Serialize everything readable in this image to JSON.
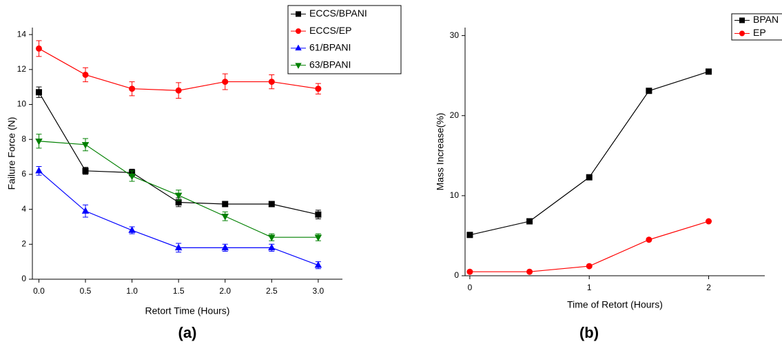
{
  "chart_data": [
    {
      "type": "line",
      "panel_label": "(a)",
      "x_label": "Retort Time (Hours)",
      "y_label": "Failure Force (N)",
      "x": [
        0,
        0.5,
        1,
        1.5,
        2,
        2.5,
        3
      ],
      "xlim": [
        -0.07,
        3.26
      ],
      "ylim": [
        0,
        14.4
      ],
      "xticks": [
        {
          "value": 0,
          "label": "0.0"
        },
        {
          "value": 0.5,
          "label": "0.5"
        },
        {
          "value": 1,
          "label": "1.0"
        },
        {
          "value": 1.5,
          "label": "1.5"
        },
        {
          "value": 2,
          "label": "2.0"
        },
        {
          "value": 2.5,
          "label": "2.5"
        },
        {
          "value": 3,
          "label": "3.0"
        }
      ],
      "yticks": [
        0,
        2,
        4,
        6,
        8,
        10,
        12,
        14
      ],
      "series": [
        {
          "name": "ECCS/BPANI",
          "color": "#000000",
          "marker": "square",
          "values": [
            10.7,
            6.2,
            6.1,
            4.4,
            4.3,
            4.3,
            3.7
          ],
          "errors": [
            0.3,
            0.2,
            0.2,
            0.25,
            0.15,
            0.15,
            0.25
          ]
        },
        {
          "name": "ECCS/EP",
          "color": "#ff0000",
          "marker": "circle",
          "values": [
            13.2,
            11.7,
            10.9,
            10.8,
            11.3,
            11.3,
            10.9
          ],
          "errors": [
            0.45,
            0.4,
            0.4,
            0.45,
            0.45,
            0.4,
            0.3
          ]
        },
        {
          "name": "61/BPANI",
          "color": "#0000ff",
          "marker": "triangle-up",
          "values": [
            6.2,
            3.9,
            2.8,
            1.8,
            1.8,
            1.8,
            0.8
          ],
          "errors": [
            0.25,
            0.35,
            0.2,
            0.25,
            0.2,
            0.2,
            0.2
          ]
        },
        {
          "name": "63/BPANI",
          "color": "#008000",
          "marker": "triangle-down",
          "values": [
            7.9,
            7.7,
            5.9,
            4.8,
            3.6,
            2.4,
            2.4
          ],
          "errors": [
            0.4,
            0.35,
            0.3,
            0.3,
            0.25,
            0.2,
            0.2
          ]
        }
      ]
    },
    {
      "type": "line",
      "panel_label": "(b)",
      "x_label": "Time of Retort (Hours)",
      "y_label": "Mass Increase(%)",
      "x": [
        0,
        0.5,
        1,
        1.5,
        2
      ],
      "xlim": [
        -0.04,
        2.47
      ],
      "ylim": [
        0,
        31
      ],
      "xticks": [
        0,
        1,
        2
      ],
      "yticks": [
        0,
        10,
        20,
        30
      ],
      "series": [
        {
          "name": "BPAN",
          "color": "#000000",
          "marker": "square",
          "values": [
            5.1,
            6.8,
            12.3,
            23.1,
            25.5
          ]
        },
        {
          "name": "EP",
          "color": "#ff0000",
          "marker": "circle",
          "values": [
            0.5,
            0.5,
            1.2,
            4.5,
            6.8
          ]
        }
      ]
    }
  ]
}
